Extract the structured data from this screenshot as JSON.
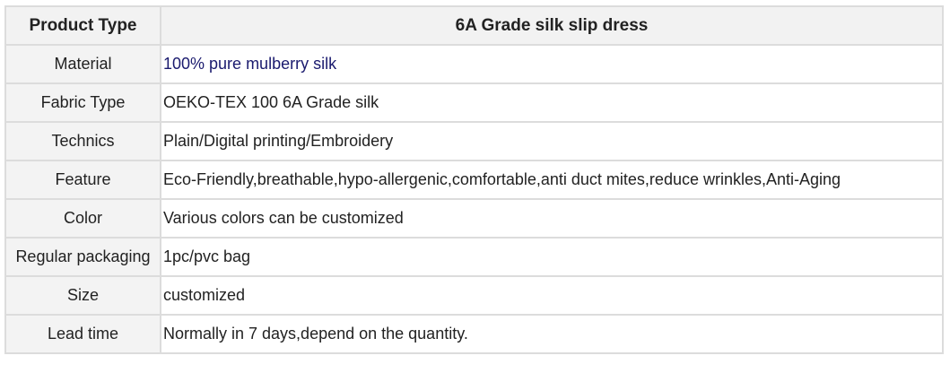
{
  "header": {
    "label": "Product Type",
    "value": "6A Grade silk slip dress"
  },
  "rows": [
    {
      "label": "Material",
      "value": "100% pure mulberry silk"
    },
    {
      "label": "Fabric Type",
      "value": "OEKO-TEX 100 6A Grade silk"
    },
    {
      "label": "Technics",
      "value": "Plain/Digital printing/Embroidery"
    },
    {
      "label": "Feature",
      "value": "Eco-Friendly,breathable,hypo-allergenic,comfortable,anti duct mites,reduce wrinkles,Anti-Aging"
    },
    {
      "label": "Color",
      "value": "Various colors can be customized"
    },
    {
      "label": "Regular packaging",
      "value": "1pc/pvc bag"
    },
    {
      "label": "Size",
      "value": "customized"
    },
    {
      "label": "Lead time",
      "value": "Normally in 7 days,depend on the quantity."
    }
  ]
}
